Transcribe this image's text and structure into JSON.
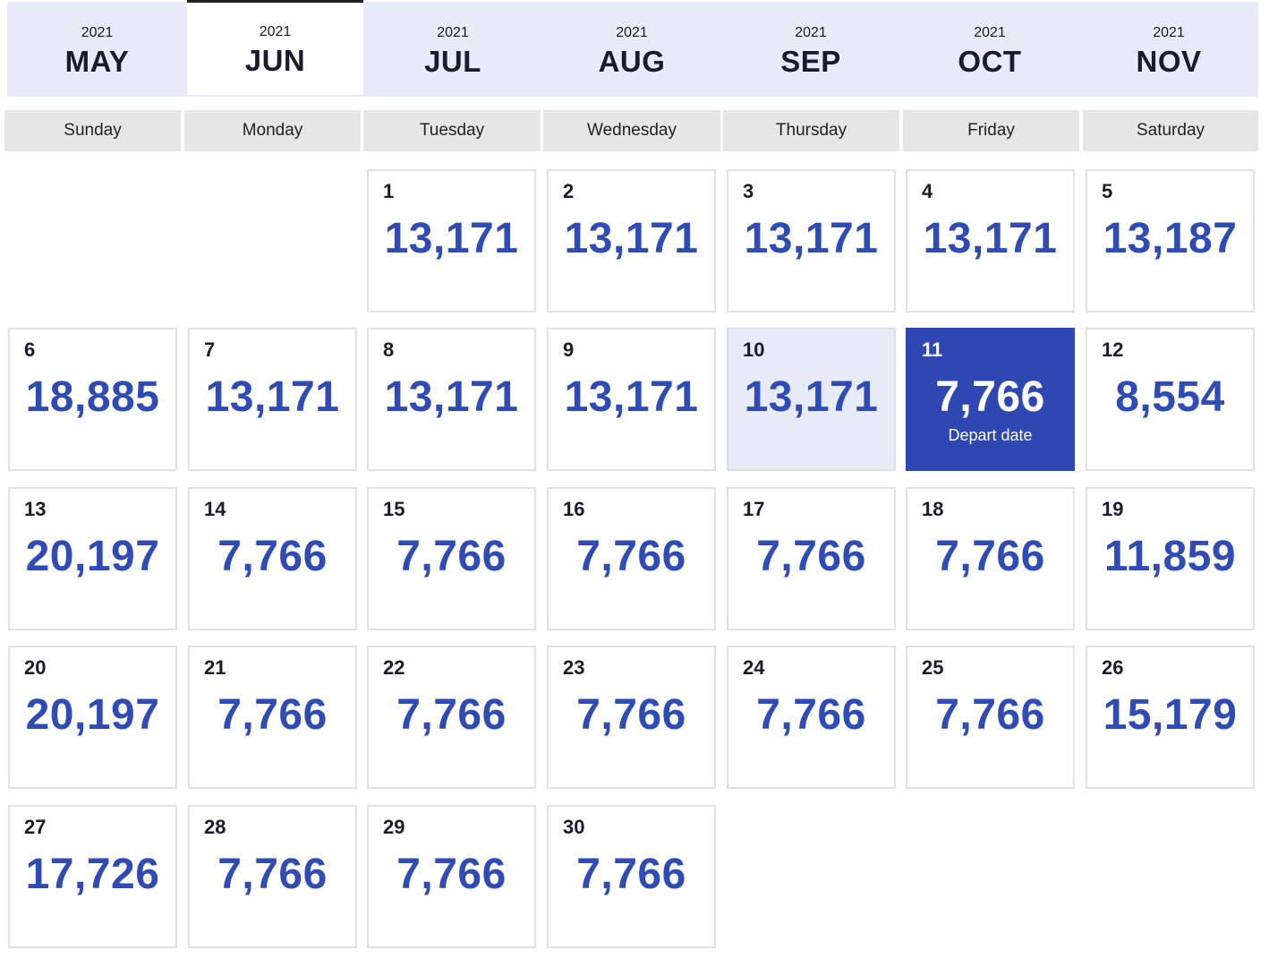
{
  "months": [
    {
      "year": "2021",
      "name": "MAY",
      "active": false
    },
    {
      "year": "2021",
      "name": "JUN",
      "active": true
    },
    {
      "year": "2021",
      "name": "JUL",
      "active": false
    },
    {
      "year": "2021",
      "name": "AUG",
      "active": false
    },
    {
      "year": "2021",
      "name": "SEP",
      "active": false
    },
    {
      "year": "2021",
      "name": "OCT",
      "active": false
    },
    {
      "year": "2021",
      "name": "NOV",
      "active": false
    }
  ],
  "weekdays": [
    "Sunday",
    "Monday",
    "Tuesday",
    "Wednesday",
    "Thursday",
    "Friday",
    "Saturday"
  ],
  "days": [
    {
      "day": "1",
      "price": "13,171"
    },
    {
      "day": "2",
      "price": "13,171"
    },
    {
      "day": "3",
      "price": "13,171"
    },
    {
      "day": "4",
      "price": "13,171"
    },
    {
      "day": "5",
      "price": "13,187"
    },
    {
      "day": "6",
      "price": "18,885"
    },
    {
      "day": "7",
      "price": "13,171"
    },
    {
      "day": "8",
      "price": "13,171"
    },
    {
      "day": "9",
      "price": "13,171"
    },
    {
      "day": "10",
      "price": "13,171",
      "state": "highlight"
    },
    {
      "day": "11",
      "price": "7,766",
      "state": "selected",
      "caption": "Depart date"
    },
    {
      "day": "12",
      "price": "8,554"
    },
    {
      "day": "13",
      "price": "20,197"
    },
    {
      "day": "14",
      "price": "7,766"
    },
    {
      "day": "15",
      "price": "7,766"
    },
    {
      "day": "16",
      "price": "7,766"
    },
    {
      "day": "17",
      "price": "7,766"
    },
    {
      "day": "18",
      "price": "7,766"
    },
    {
      "day": "19",
      "price": "11,859"
    },
    {
      "day": "20",
      "price": "20,197"
    },
    {
      "day": "21",
      "price": "7,766"
    },
    {
      "day": "22",
      "price": "7,766"
    },
    {
      "day": "23",
      "price": "7,766"
    },
    {
      "day": "24",
      "price": "7,766"
    },
    {
      "day": "25",
      "price": "7,766"
    },
    {
      "day": "26",
      "price": "15,179"
    },
    {
      "day": "27",
      "price": "17,726"
    },
    {
      "day": "28",
      "price": "7,766"
    },
    {
      "day": "29",
      "price": "7,766"
    },
    {
      "day": "30",
      "price": "7,766"
    }
  ],
  "colors": {
    "price": "#2f4bb5",
    "selected_bg": "#2f47b3",
    "highlight_bg": "#e7ebf8",
    "tab_bar_bg": "#e7ebf8"
  }
}
